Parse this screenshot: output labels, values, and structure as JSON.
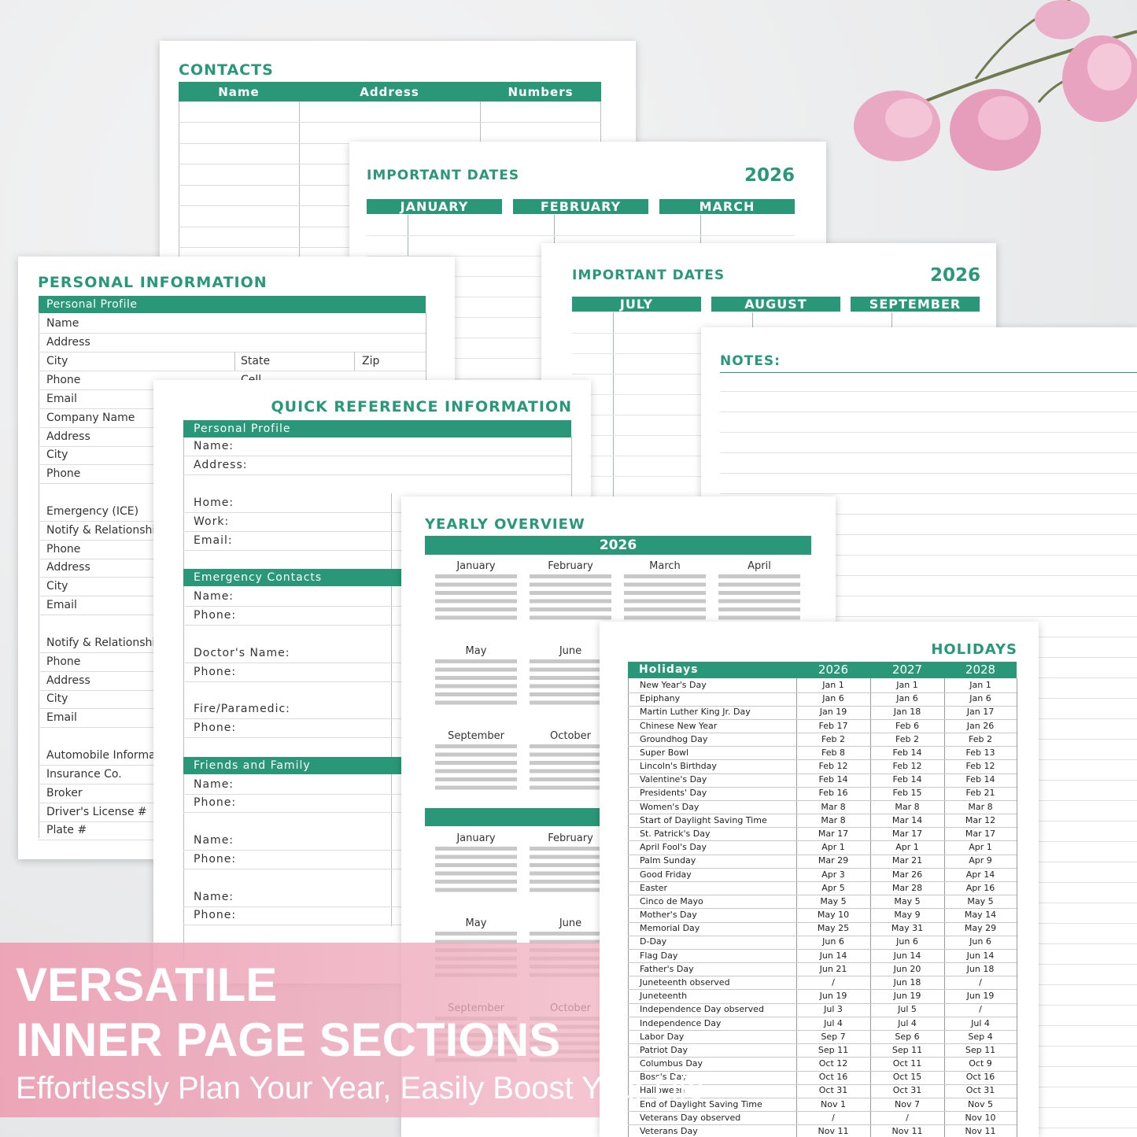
{
  "contacts": {
    "title": "CONTACTS",
    "columns": [
      "Name",
      "Address",
      "Numbers"
    ]
  },
  "important_dates_1": {
    "title": "IMPORTANT DATES",
    "year": "2026",
    "months": [
      "JANUARY",
      "FEBRUARY",
      "MARCH"
    ]
  },
  "important_dates_2": {
    "title": "IMPORTANT DATES",
    "year": "2026",
    "months": [
      "JULY",
      "AUGUST",
      "SEPTEMBER"
    ]
  },
  "notes": {
    "title": "NOTES:"
  },
  "personal_information": {
    "title": "PERSONAL INFORMATION",
    "section": "Personal Profile",
    "fields": [
      "Name",
      "Address",
      "City",
      "Phone",
      "Email",
      "Company Name",
      "Address",
      "City",
      "Phone",
      "Emergency (ICE)",
      "Notify & Relationship",
      "Phone",
      "Address",
      "City",
      "Email",
      "Notify & Relationship",
      "Phone",
      "Address",
      "City",
      "Email",
      "Automobile Information",
      "Insurance Co.",
      "Broker",
      "Driver's License #",
      "Plate #"
    ],
    "state": "State",
    "zip": "Zip",
    "cell": "Cell"
  },
  "quick_reference": {
    "title": "QUICK REFERENCE INFORMATION",
    "sections": [
      {
        "title": "Personal Profile",
        "fields": [
          "Name:",
          "Address:",
          "Home:",
          "Work:",
          "Email:"
        ]
      },
      {
        "title": "Emergency Contacts",
        "fields": [
          "Name:",
          "Phone:",
          "Doctor's Name:",
          "Phone:",
          "Fire/Paramedic:",
          "Phone:"
        ]
      },
      {
        "title": "Friends and Family",
        "fields": [
          "Name:",
          "Phone:",
          "Name:",
          "Phone:",
          "Name:",
          "Phone:"
        ]
      }
    ]
  },
  "yearly_overview": {
    "title": "YEARLY OVERVIEW",
    "year": "2026",
    "months": [
      "January",
      "February",
      "March",
      "April",
      "May",
      "June",
      "September",
      "October"
    ],
    "months_next": [
      "January",
      "February",
      "May",
      "June",
      "September",
      "October"
    ]
  },
  "holidays": {
    "title": "HOLIDAYS",
    "columns": [
      "Holidays",
      "2026",
      "2027",
      "2028"
    ],
    "rows": [
      [
        "New Year's Day",
        "Jan 1",
        "Jan 1",
        "Jan 1"
      ],
      [
        "Epiphany",
        "Jan 6",
        "Jan 6",
        "Jan 6"
      ],
      [
        "Martin Luther King Jr. Day",
        "Jan 19",
        "Jan 18",
        "Jan 17"
      ],
      [
        "Chinese New Year",
        "Feb 17",
        "Feb 6",
        "Jan 26"
      ],
      [
        "Groundhog Day",
        "Feb 2",
        "Feb 2",
        "Feb 2"
      ],
      [
        "Super Bowl",
        "Feb 8",
        "Feb 14",
        "Feb 13"
      ],
      [
        "Lincoln's Birthday",
        "Feb 12",
        "Feb 12",
        "Feb 12"
      ],
      [
        "Valentine's Day",
        "Feb 14",
        "Feb 14",
        "Feb 14"
      ],
      [
        "Presidents' Day",
        "Feb 16",
        "Feb 15",
        "Feb 21"
      ],
      [
        "Women's Day",
        "Mar 8",
        "Mar 8",
        "Mar 8"
      ],
      [
        "Start of Daylight Saving Time",
        "Mar 8",
        "Mar 14",
        "Mar 12"
      ],
      [
        "St. Patrick's Day",
        "Mar 17",
        "Mar 17",
        "Mar 17"
      ],
      [
        "April Fool's Day",
        "Apr 1",
        "Apr 1",
        "Apr 1"
      ],
      [
        "Palm Sunday",
        "Mar 29",
        "Mar 21",
        "Apr 9"
      ],
      [
        "Good Friday",
        "Apr 3",
        "Mar 26",
        "Apr 14"
      ],
      [
        "Easter",
        "Apr 5",
        "Mar 28",
        "Apr 16"
      ],
      [
        "Cinco de Mayo",
        "May 5",
        "May 5",
        "May 5"
      ],
      [
        "Mother's Day",
        "May 10",
        "May 9",
        "May 14"
      ],
      [
        "Memorial Day",
        "May 25",
        "May 31",
        "May 29"
      ],
      [
        "D-Day",
        "Jun 6",
        "Jun 6",
        "Jun 6"
      ],
      [
        "Flag Day",
        "Jun 14",
        "Jun 14",
        "Jun 14"
      ],
      [
        "Father's Day",
        "Jun 21",
        "Jun 20",
        "Jun 18"
      ],
      [
        "Juneteenth observed",
        "/",
        "Jun 18",
        "/"
      ],
      [
        "Juneteenth",
        "Jun 19",
        "Jun 19",
        "Jun 19"
      ],
      [
        "Independence Day observed",
        "Jul 3",
        "Jul 5",
        "/"
      ],
      [
        "Independence Day",
        "Jul 4",
        "Jul 4",
        "Jul 4"
      ],
      [
        "Labor Day",
        "Sep 7",
        "Sep 6",
        "Sep 4"
      ],
      [
        "Patriot Day",
        "Sep 11",
        "Sep 11",
        "Sep 11"
      ],
      [
        "Columbus Day",
        "Oct 12",
        "Oct 11",
        "Oct 9"
      ],
      [
        "Boss's Day",
        "Oct 16",
        "Oct 15",
        "Oct 16"
      ],
      [
        "Halloween",
        "Oct 31",
        "Oct 31",
        "Oct 31"
      ],
      [
        "End of Daylight Saving Time",
        "Nov 1",
        "Nov 7",
        "Nov 5"
      ],
      [
        "Veterans Day observed",
        "/",
        "/",
        "Nov 10"
      ],
      [
        "Veterans Day",
        "Nov 11",
        "Nov 11",
        "Nov 11"
      ]
    ]
  },
  "banner": {
    "line1": "VERSATILE",
    "line2": "INNER PAGE SECTIONS",
    "tagline": "Effortlessly Plan Your Year, Easily Boost Your Life"
  }
}
